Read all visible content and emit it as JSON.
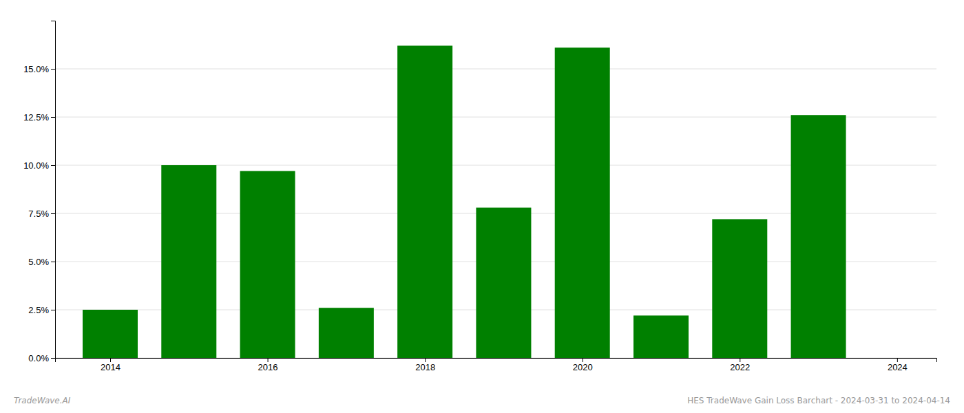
{
  "chart_data": {
    "type": "bar",
    "x": [
      2014,
      2015,
      2016,
      2017,
      2018,
      2019,
      2020,
      2021,
      2022,
      2023
    ],
    "values": [
      0.025,
      0.1,
      0.097,
      0.026,
      0.162,
      0.078,
      0.161,
      0.022,
      0.072,
      0.126
    ],
    "color": "#008000",
    "xlim": [
      2013.3,
      2024.5
    ],
    "xticks": [
      2014,
      2016,
      2018,
      2020,
      2022,
      2024
    ],
    "ylim": [
      0,
      0.175
    ],
    "yticks": [
      {
        "value": 0.0,
        "label": "0.0%"
      },
      {
        "value": 0.025,
        "label": "2.5%"
      },
      {
        "value": 0.05,
        "label": "5.0%"
      },
      {
        "value": 0.075,
        "label": "7.5%"
      },
      {
        "value": 0.1,
        "label": "10.0%"
      },
      {
        "value": 0.125,
        "label": "12.5%"
      },
      {
        "value": 0.15,
        "label": "15.0%"
      }
    ],
    "grid": true,
    "annotations": [
      "TradeWave.AI",
      "HES TradeWave Gain Loss Barchart - 2024-03-31 to 2024-04-14"
    ]
  }
}
